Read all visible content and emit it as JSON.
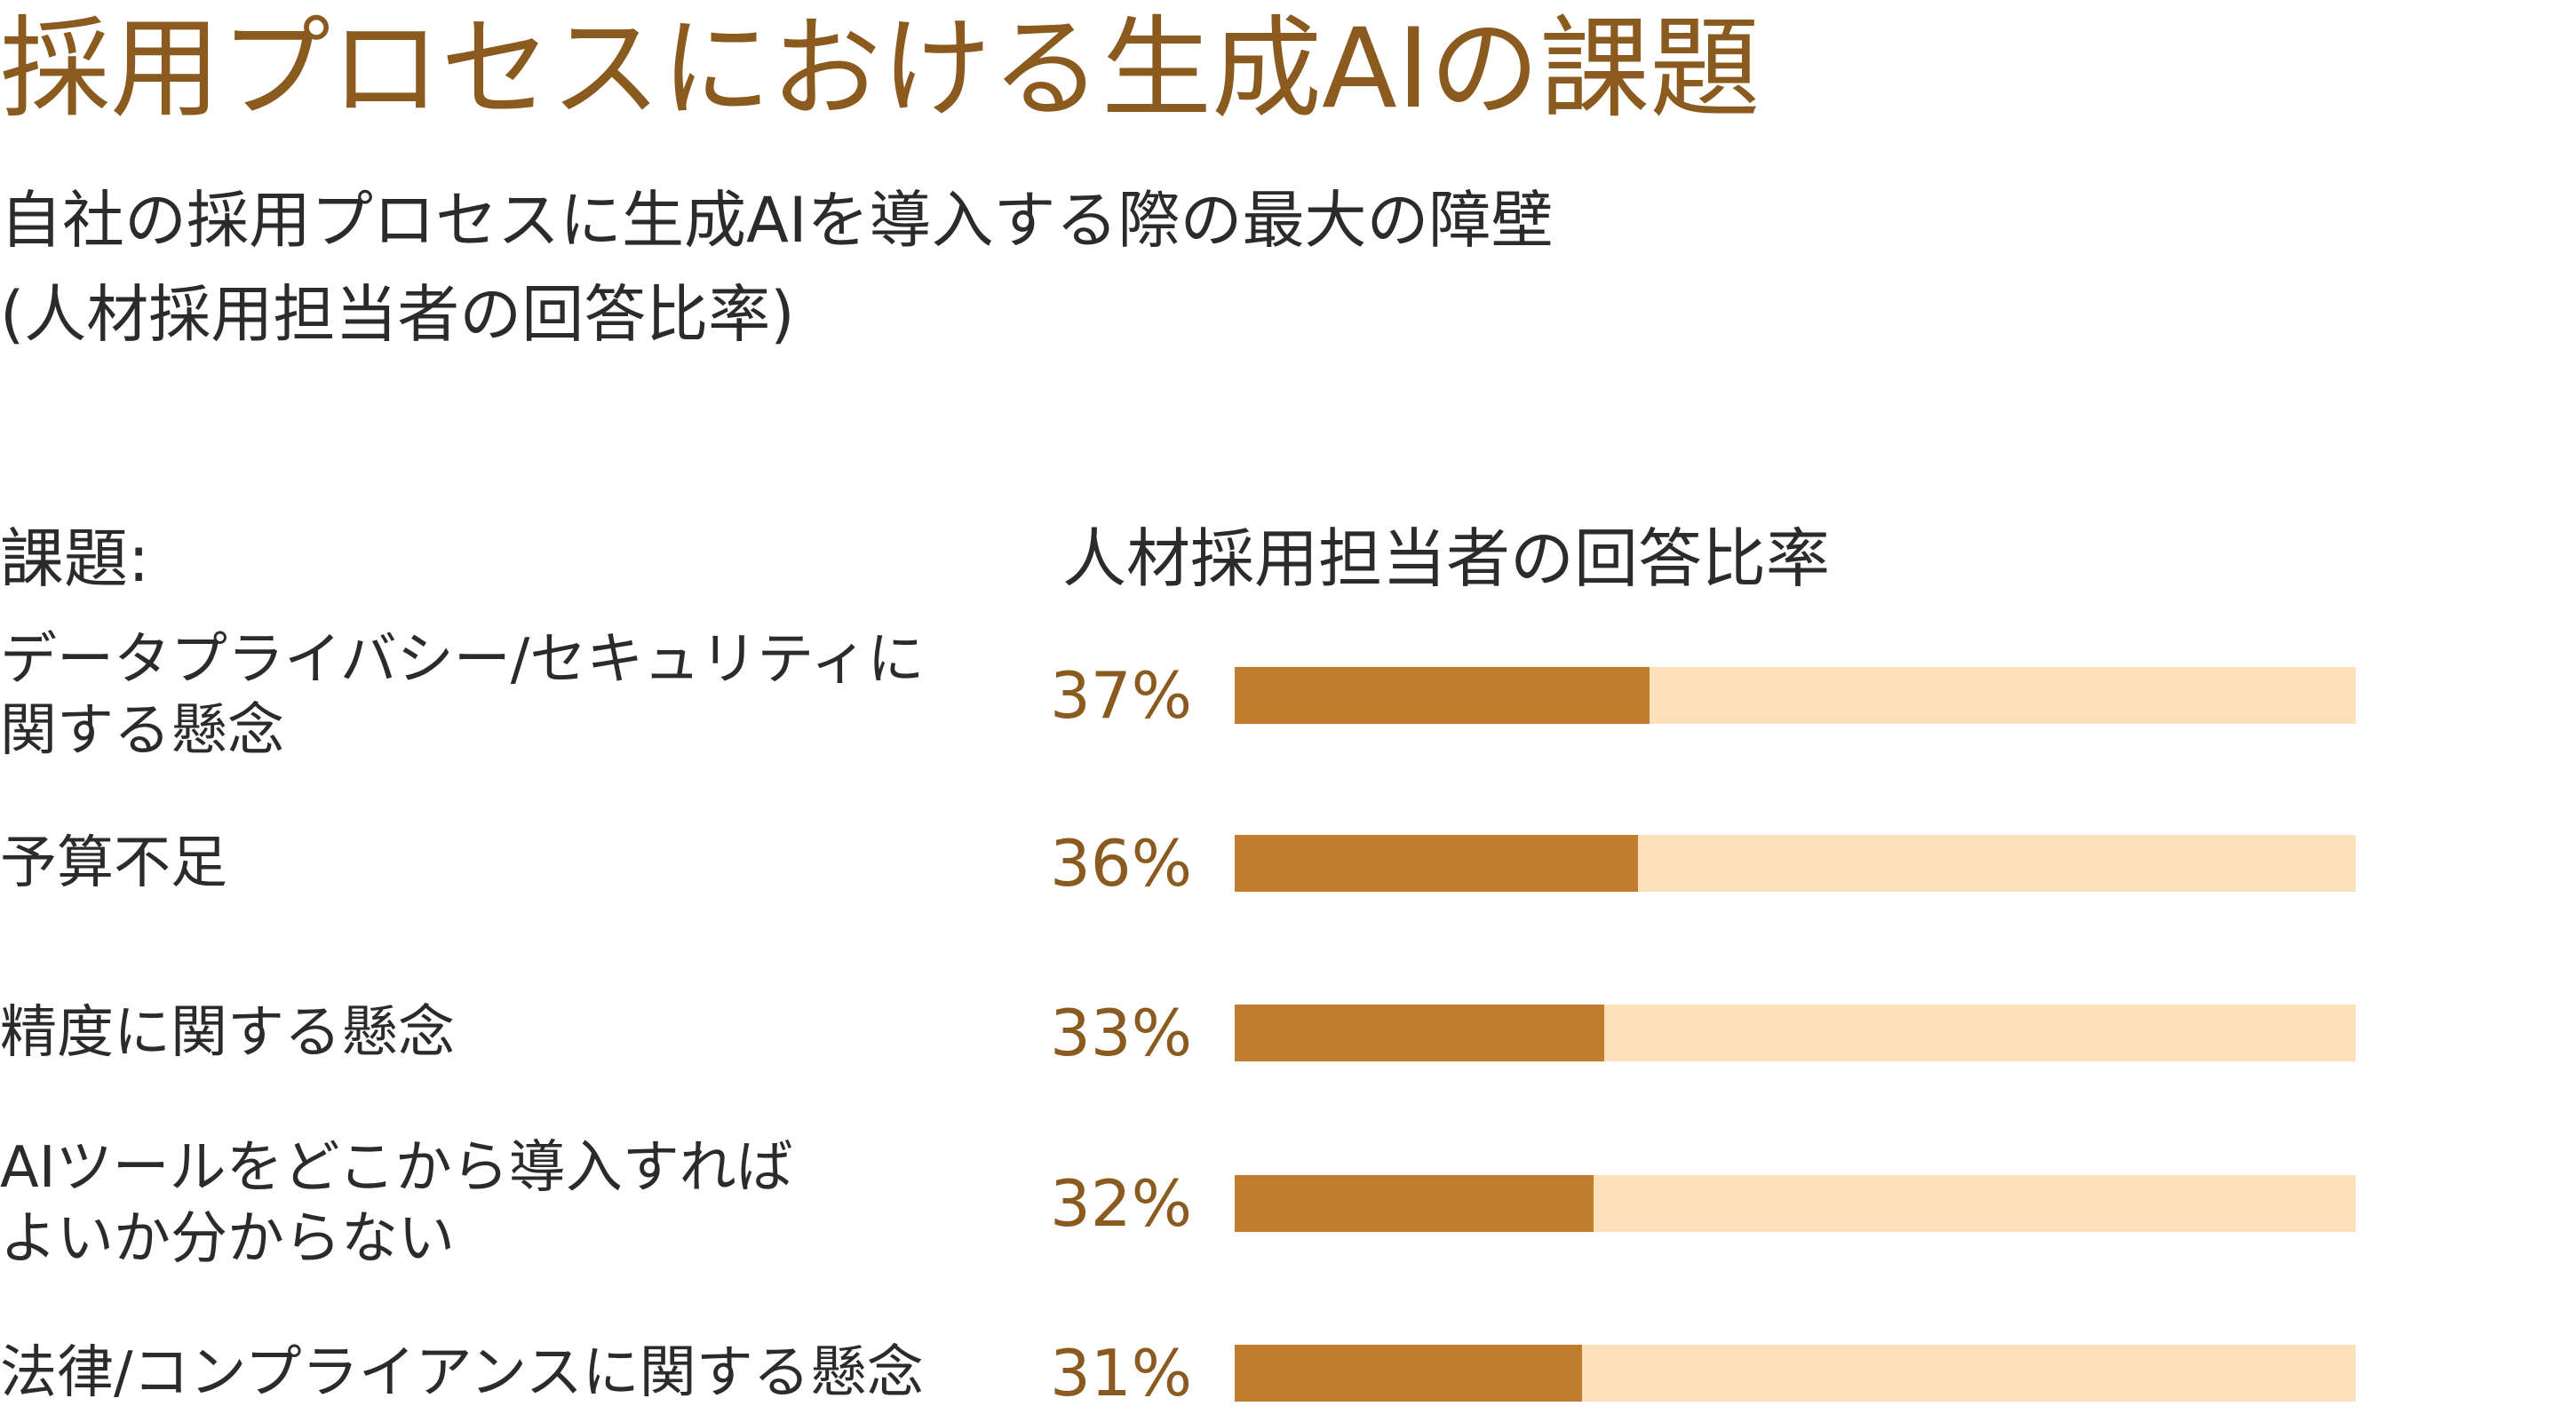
{
  "chart_data": {
    "type": "bar",
    "orientation": "horizontal",
    "title": "採用プロセスにおける生成AIの課題",
    "subtitle": "自社の採用プロセスに生成AIを導入する際の最大の障壁\n(人材採用担当者の回答比率)",
    "category_header": "課題:",
    "value_header": "人材採用担当者の回答比率",
    "categories": [
      "データプライバシー/セキュリティに\n関する懸念",
      "予算不足",
      "精度に関する懸念",
      "AIツールをどこから導入すれば\nよいか分からない",
      "法律/コンプライアンスに関する懸念"
    ],
    "values": [
      37,
      36,
      33,
      32,
      31
    ],
    "value_labels": [
      "37%",
      "36%",
      "33%",
      "32%",
      "31%"
    ],
    "xlim": [
      0,
      100
    ],
    "color": "#c17d2d",
    "track_color": "#fde1bb"
  }
}
